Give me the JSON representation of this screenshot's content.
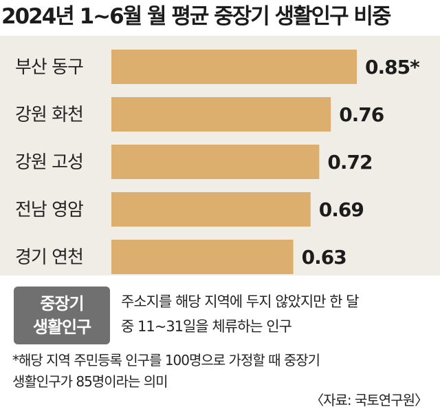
{
  "title": "2024년 1~6월 월 평균 중장기 생활인구 비중",
  "chart_data": {
    "type": "bar",
    "orientation": "horizontal",
    "categories": [
      "부산 동구",
      "강원 화천",
      "강원 고성",
      "전남 영암",
      "경기 연천"
    ],
    "values": [
      0.85,
      0.76,
      0.72,
      0.69,
      0.63
    ],
    "value_labels": [
      "0.85*",
      "0.76",
      "0.72",
      "0.69",
      "0.63"
    ],
    "xlim": [
      0,
      1
    ],
    "grid": false,
    "bar_color": "#dcaf6e",
    "background_color": "#f0ede6"
  },
  "legend": {
    "badge_lines": [
      "중장기",
      "생활인구"
    ],
    "badge_color": "#707070",
    "description_lines": [
      "주소지를 해당 지역에 두지 않았지만 한 달",
      "중 11~31일을 체류하는 인구"
    ]
  },
  "footnote_lines": [
    "*해당 지역 주민등록 인구를 100명으로 가정할 때 중장기",
    "생활인구가 85명이라는 의미"
  ],
  "source": "〈자료: 국토연구원〉"
}
